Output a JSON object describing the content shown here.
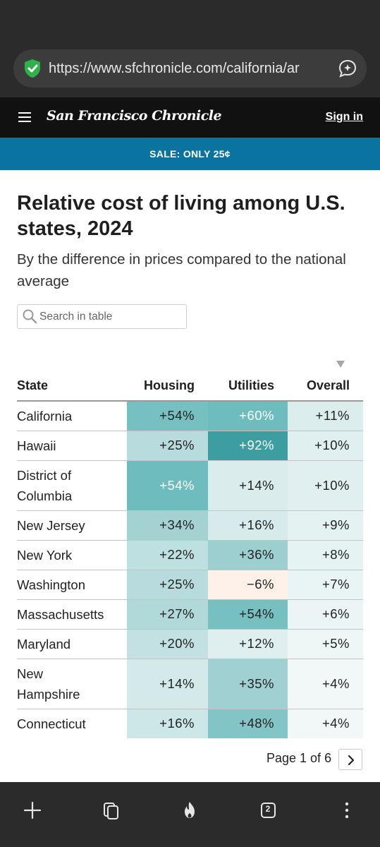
{
  "browser": {
    "url": "https://www.sfchronicle.com/california/ar",
    "tab_count": "2"
  },
  "site": {
    "masthead": "San Francisco Chronicle",
    "sign_in": "Sign in",
    "sale": "SALE: ONLY 25¢"
  },
  "article": {
    "title": "Relative cost of living among U.S. states, 2024",
    "subtitle": "By the difference in prices compared to the national average"
  },
  "search": {
    "placeholder": "Search in table"
  },
  "table": {
    "columns": {
      "state": "State",
      "housing": "Housing",
      "utilities": "Utilities",
      "overall": "Overall"
    },
    "sorted_by": "Overall",
    "rows": [
      {
        "state": "California",
        "housing": "+54%",
        "utilities": "+60%",
        "overall": "+11%"
      },
      {
        "state": "Hawaii",
        "housing": "+25%",
        "utilities": "+92%",
        "overall": "+10%"
      },
      {
        "state": "District of Columbia",
        "housing": "+54%",
        "utilities": "+14%",
        "overall": "+10%"
      },
      {
        "state": "New Jersey",
        "housing": "+34%",
        "utilities": "+16%",
        "overall": "+9%"
      },
      {
        "state": "New York",
        "housing": "+22%",
        "utilities": "+36%",
        "overall": "+8%"
      },
      {
        "state": "Washington",
        "housing": "+25%",
        "utilities": "−6%",
        "overall": "+7%"
      },
      {
        "state": "Massachusetts",
        "housing": "+27%",
        "utilities": "+54%",
        "overall": "+6%"
      },
      {
        "state": "Maryland",
        "housing": "+20%",
        "utilities": "+12%",
        "overall": "+5%"
      },
      {
        "state": "New Hampshire",
        "housing": "+14%",
        "utilities": "+35%",
        "overall": "+4%"
      },
      {
        "state": "Connecticut",
        "housing": "+16%",
        "utilities": "+48%",
        "overall": "+4%"
      }
    ]
  },
  "pagination": {
    "label": "Page 1 of 6"
  },
  "colors": {
    "browser_chrome": "#2b2b2b",
    "header": "#111111",
    "sale_bar": "#0a73a0",
    "positive_scale": "#3c9ea0",
    "negative_scale": "#fdf1ea"
  },
  "icons": {
    "security": "shield-check-icon",
    "assistant": "chat-sparkle-icon",
    "menu": "hamburger-menu-icon",
    "search": "search-icon",
    "sort": "sort-descending-icon",
    "next": "chevron-right-icon",
    "new_tab": "plus-icon",
    "tab_groups": "tabs-icon",
    "fire": "fire-icon",
    "tab_switcher": "tab-count-icon",
    "more": "more-vertical-icon"
  }
}
